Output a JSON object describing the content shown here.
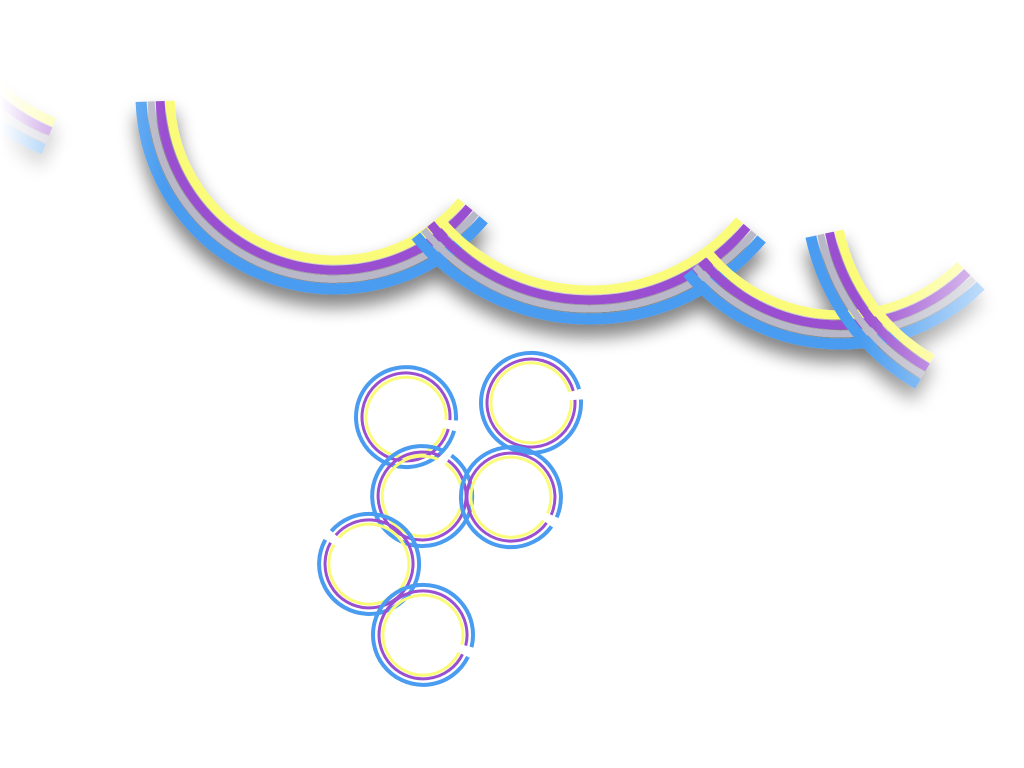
{
  "colors": {
    "background": "#ffffff",
    "stripe_outer": "#4a9cf0",
    "stripe_gray": "#b8b8c8",
    "stripe_purple": "#9a4fd0",
    "stripe_yellow": "#fbfb7a",
    "stripe_shadow": "#9a9aa6"
  },
  "scallop_border": {
    "arc_count": 4,
    "stripe_order": [
      "yellow",
      "purple",
      "gray",
      "blue"
    ]
  },
  "rings": {
    "count": 6,
    "layers": [
      "blue",
      "purple",
      "yellow"
    ]
  }
}
